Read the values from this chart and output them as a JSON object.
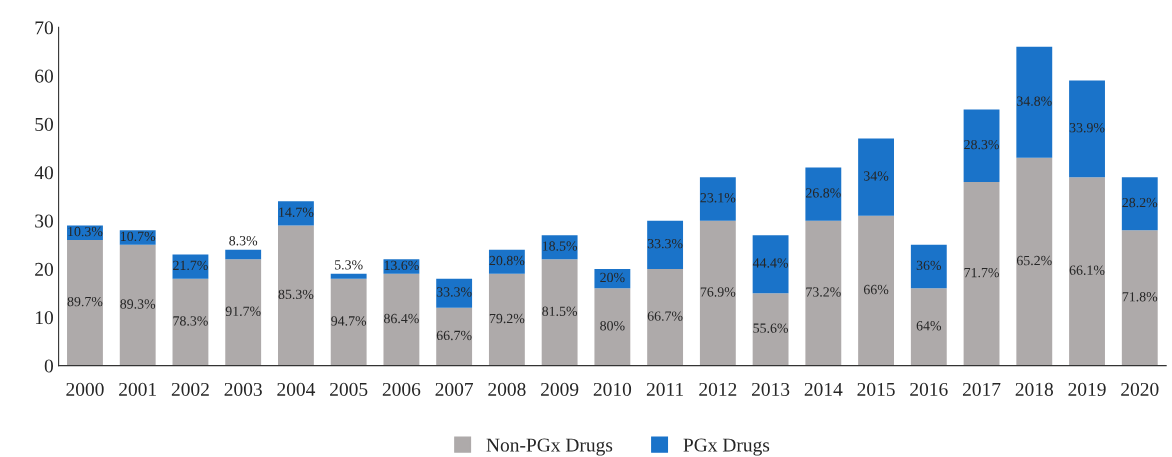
{
  "chart_data": {
    "type": "bar",
    "stacked": true,
    "categories": [
      "2000",
      "2001",
      "2002",
      "2003",
      "2004",
      "2005",
      "2006",
      "2007",
      "2008",
      "2009",
      "2010",
      "2011",
      "2012",
      "2013",
      "2014",
      "2015",
      "2016",
      "2017",
      "2018",
      "2019",
      "2020"
    ],
    "series": [
      {
        "name": "Non-PGx Drugs",
        "color": "#aeaaaa",
        "values": [
          26,
          25,
          18,
          22,
          29,
          18,
          19,
          12,
          19,
          22,
          16,
          20,
          30,
          15,
          30,
          31,
          16,
          38,
          43,
          39,
          28
        ]
      },
      {
        "name": "PGx Drugs",
        "color": "#1a73c9",
        "values": [
          3,
          3,
          5,
          2,
          5,
          1,
          3,
          6,
          5,
          5,
          4,
          10,
          9,
          12,
          11,
          16,
          9,
          15,
          23,
          20,
          11
        ]
      }
    ],
    "annotations": [
      "89.7%",
      "89.3%",
      "78.3%",
      "91.7%",
      "85.3%",
      "94.7%",
      "86.4%",
      "66.7%",
      "79.2%",
      "81.5%",
      "80%",
      "66.7%",
      "76.9%",
      "55.6%",
      "73.2%",
      "66%",
      "64%",
      "71.7%",
      "65.2%",
      "66.1%",
      "71.8%",
      "10.3%",
      "10.7%",
      "21.7%",
      "8.3%",
      "14.7%",
      "5.3%",
      "13.6%",
      "33.3%",
      "20.8%",
      "18.5%",
      "20%",
      "33.3%",
      "23.1%",
      "44.4%",
      "26.8%",
      "34%",
      "36%",
      "28.3%",
      "34.8%",
      "33.9%",
      "28.2%"
    ],
    "ylim": [
      0,
      70
    ],
    "yticks": [
      0,
      10,
      20,
      30,
      40,
      50,
      60,
      70
    ],
    "grid": false,
    "legend": "bottom"
  }
}
